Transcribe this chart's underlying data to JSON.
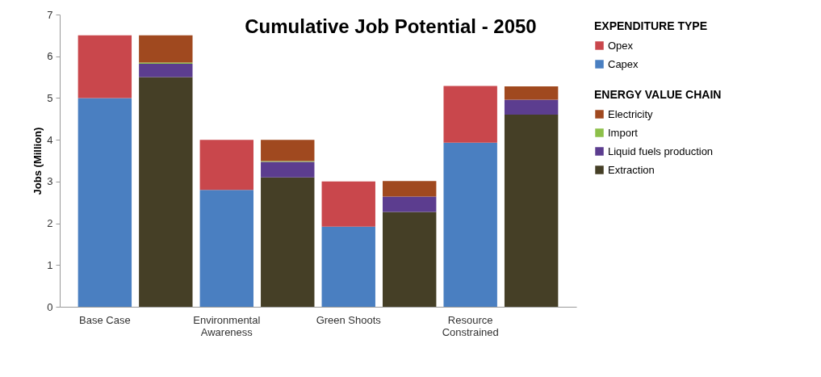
{
  "chart_data": {
    "type": "bar",
    "stacked": true,
    "title": "Cumulative Job Potential - 2050",
    "ylabel": "Jobs (Million)",
    "categories": [
      "Base Case",
      null,
      "Environmental Awareness",
      null,
      "Green Shoots",
      null,
      "Resource Constrained",
      null
    ],
    "legend_title": [
      "EXPENDITURE TYPE",
      "ENERGY VALUE CHAIN"
    ],
    "series": [
      {
        "name": "Capex",
        "color": "#4a7fc1",
        "values": [
          5.0,
          null,
          2.8,
          null,
          1.92,
          null,
          3.93,
          null
        ]
      },
      {
        "name": "Opex",
        "color": "#c9474c",
        "values": [
          1.5,
          null,
          1.2,
          null,
          1.08,
          null,
          1.36,
          null
        ]
      },
      {
        "name": "Extraction",
        "color": "#453f26",
        "values": [
          null,
          5.5,
          null,
          3.1,
          null,
          2.27,
          null,
          4.6
        ]
      },
      {
        "name": "Liquid fuels production",
        "color": "#5c3d8f",
        "values": [
          null,
          0.32,
          null,
          0.37,
          null,
          0.37,
          null,
          0.36
        ]
      },
      {
        "name": "Import",
        "color": "#8dc04a",
        "values": [
          null,
          0.03,
          null,
          0.02,
          null,
          null,
          null,
          null
        ]
      },
      {
        "name": "Electricity",
        "color": "#a0491f",
        "values": [
          null,
          0.65,
          null,
          0.51,
          null,
          0.37,
          null,
          0.32
        ]
      }
    ],
    "ylim": [
      0,
      7
    ],
    "yticks": [
      0,
      1,
      2,
      3,
      4,
      5,
      6,
      7
    ],
    "grid": false,
    "legend": "right"
  }
}
